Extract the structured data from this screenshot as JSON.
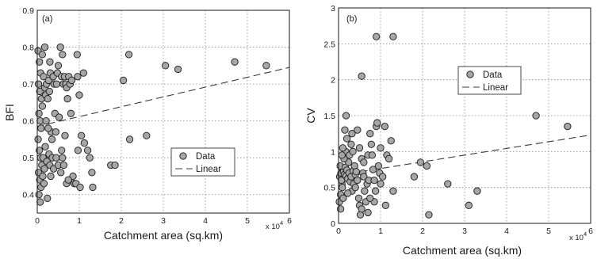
{
  "chart_data": [
    {
      "type": "scatter",
      "panel_label": "(a)",
      "xlabel": "Catchment area (sq.km)",
      "ylabel": "BFI",
      "x_multiplier_label": "x 10",
      "x_multiplier_exp": "4",
      "xlim": [
        0,
        6
      ],
      "ylim": [
        0.35,
        0.9
      ],
      "x_ticks": [
        "0",
        "1",
        "2",
        "3",
        "4",
        "5",
        "6"
      ],
      "y_ticks": [
        "0.4",
        "0.5",
        "0.6",
        "0.7",
        "0.8",
        "0.9"
      ],
      "grid": true,
      "legend_position": "center-right",
      "series": [
        {
          "name": "Data",
          "kind": "markers",
          "points": [
            [
              0.02,
              0.79
            ],
            [
              0.05,
              0.76
            ],
            [
              0.08,
              0.73
            ],
            [
              0.03,
              0.7
            ],
            [
              0.06,
              0.68
            ],
            [
              0.1,
              0.66
            ],
            [
              0.12,
              0.64
            ],
            [
              0.04,
              0.62
            ],
            [
              0.07,
              0.6
            ],
            [
              0.09,
              0.58
            ],
            [
              0.02,
              0.55
            ],
            [
              0.05,
              0.52
            ],
            [
              0.08,
              0.5
            ],
            [
              0.11,
              0.48
            ],
            [
              0.03,
              0.46
            ],
            [
              0.06,
              0.44
            ],
            [
              0.09,
              0.42
            ],
            [
              0.04,
              0.4
            ],
            [
              0.07,
              0.38
            ],
            [
              0.13,
              0.45
            ],
            [
              0.15,
              0.72
            ],
            [
              0.18,
              0.69
            ],
            [
              0.2,
              0.67
            ],
            [
              0.22,
              0.7
            ],
            [
              0.25,
              0.66
            ],
            [
              0.14,
              0.5
            ],
            [
              0.17,
              0.47
            ],
            [
              0.19,
              0.53
            ],
            [
              0.23,
              0.49
            ],
            [
              0.16,
              0.43
            ],
            [
              0.27,
              0.71
            ],
            [
              0.29,
              0.68
            ],
            [
              0.31,
              0.73
            ],
            [
              0.33,
              0.57
            ],
            [
              0.35,
              0.55
            ],
            [
              0.28,
              0.51
            ],
            [
              0.3,
              0.48
            ],
            [
              0.32,
              0.45
            ],
            [
              0.21,
              0.6
            ],
            [
              0.26,
              0.58
            ],
            [
              0.12,
              0.78
            ],
            [
              0.18,
              0.8
            ],
            [
              0.3,
              0.76
            ],
            [
              0.38,
              0.72
            ],
            [
              0.4,
              0.7
            ],
            [
              0.42,
              0.62
            ],
            [
              0.44,
              0.57
            ],
            [
              0.36,
              0.5
            ],
            [
              0.39,
              0.47
            ],
            [
              0.24,
              0.39
            ],
            [
              0.46,
              0.7
            ],
            [
              0.48,
              0.73
            ],
            [
              0.5,
              0.75
            ],
            [
              0.52,
              0.61
            ],
            [
              0.55,
              0.8
            ],
            [
              0.58,
              0.72
            ],
            [
              0.62,
              0.7
            ],
            [
              0.45,
              0.5
            ],
            [
              0.5,
              0.48
            ],
            [
              0.56,
              0.46
            ],
            [
              0.6,
              0.78
            ],
            [
              0.65,
              0.72
            ],
            [
              0.68,
              0.7
            ],
            [
              0.7,
              0.69
            ],
            [
              0.72,
              0.66
            ],
            [
              0.6,
              0.5
            ],
            [
              0.63,
              0.48
            ],
            [
              0.66,
              0.56
            ],
            [
              0.7,
              0.43
            ],
            [
              0.58,
              0.52
            ],
            [
              0.75,
              0.72
            ],
            [
              0.78,
              0.7
            ],
            [
              0.82,
              0.71
            ],
            [
              0.85,
              0.45
            ],
            [
              0.88,
              0.43
            ],
            [
              0.92,
              0.43
            ],
            [
              0.95,
              0.78
            ],
            [
              0.96,
              0.72
            ],
            [
              1.0,
              0.67
            ],
            [
              1.05,
              0.56
            ],
            [
              0.97,
              0.52
            ],
            [
              1.02,
              0.42
            ],
            [
              1.1,
              0.73
            ],
            [
              1.12,
              0.54
            ],
            [
              1.2,
              0.52
            ],
            [
              1.25,
              0.5
            ],
            [
              1.3,
              0.46
            ],
            [
              1.32,
              0.42
            ],
            [
              0.8,
              0.62
            ],
            [
              0.74,
              0.44
            ],
            [
              1.75,
              0.48
            ],
            [
              1.85,
              0.48
            ],
            [
              2.05,
              0.71
            ],
            [
              2.18,
              0.78
            ],
            [
              2.2,
              0.55
            ],
            [
              2.6,
              0.56
            ],
            [
              3.05,
              0.75
            ],
            [
              3.35,
              0.74
            ],
            [
              4.7,
              0.76
            ],
            [
              5.45,
              0.75
            ]
          ]
        },
        {
          "name": "Linear",
          "kind": "line",
          "points": [
            [
              0,
              0.585
            ],
            [
              6,
              0.745
            ]
          ]
        }
      ]
    },
    {
      "type": "scatter",
      "panel_label": "(b)",
      "xlabel": "Catchment area (sq.km)",
      "ylabel": "CV",
      "x_multiplier_label": "x 10",
      "x_multiplier_exp": "4",
      "xlim": [
        0,
        6
      ],
      "ylim": [
        0,
        3
      ],
      "x_ticks": [
        "0",
        "1",
        "2",
        "3",
        "4",
        "5",
        "6"
      ],
      "y_ticks": [
        "0",
        "0.5",
        "1",
        "1.5",
        "2",
        "2.5",
        "3"
      ],
      "grid": true,
      "legend_position": "upper-center",
      "series": [
        {
          "name": "Data",
          "kind": "markers",
          "points": [
            [
              0.02,
              0.3
            ],
            [
              0.05,
              0.4
            ],
            [
              0.08,
              0.55
            ],
            [
              0.03,
              0.65
            ],
            [
              0.06,
              0.7
            ],
            [
              0.1,
              0.75
            ],
            [
              0.04,
              0.8
            ],
            [
              0.07,
              0.6
            ],
            [
              0.09,
              0.5
            ],
            [
              0.11,
              0.35
            ],
            [
              0.12,
              0.72
            ],
            [
              0.14,
              0.68
            ],
            [
              0.16,
              0.78
            ],
            [
              0.18,
              0.66
            ],
            [
              0.2,
              0.74
            ],
            [
              0.22,
              0.62
            ],
            [
              0.24,
              0.85
            ],
            [
              0.13,
              0.9
            ],
            [
              0.17,
              1.0
            ],
            [
              0.1,
              1.05
            ],
            [
              0.15,
              1.3
            ],
            [
              0.18,
              1.5
            ],
            [
              0.2,
              1.18
            ],
            [
              0.25,
              0.7
            ],
            [
              0.28,
              0.58
            ],
            [
              0.3,
              0.65
            ],
            [
              0.32,
              0.45
            ],
            [
              0.35,
              0.73
            ],
            [
              0.38,
              0.8
            ],
            [
              0.4,
              0.68
            ],
            [
              0.26,
              0.95
            ],
            [
              0.3,
              1.1
            ],
            [
              0.34,
              1.0
            ],
            [
              0.36,
              0.55
            ],
            [
              0.42,
              0.72
            ],
            [
              0.45,
              0.6
            ],
            [
              0.48,
              0.35
            ],
            [
              0.5,
              0.25
            ],
            [
              0.52,
              0.12
            ],
            [
              0.55,
              0.2
            ],
            [
              0.45,
              1.3
            ],
            [
              0.5,
              1.05
            ],
            [
              0.55,
              0.9
            ],
            [
              0.58,
              0.7
            ],
            [
              0.6,
              0.65
            ],
            [
              0.62,
              0.45
            ],
            [
              0.65,
              0.3
            ],
            [
              0.68,
              0.55
            ],
            [
              0.7,
              0.95
            ],
            [
              0.72,
              0.6
            ],
            [
              0.75,
              1.25
            ],
            [
              0.78,
              1.1
            ],
            [
              0.8,
              0.95
            ],
            [
              0.82,
              0.75
            ],
            [
              0.85,
              0.6
            ],
            [
              0.88,
              0.45
            ],
            [
              0.9,
              1.35
            ],
            [
              0.92,
              1.4
            ],
            [
              0.95,
              0.8
            ],
            [
              0.98,
              0.7
            ],
            [
              1.0,
              1.05
            ],
            [
              1.05,
              0.65
            ],
            [
              1.1,
              1.35
            ],
            [
              1.15,
              0.95
            ],
            [
              1.2,
              0.9
            ],
            [
              1.25,
              1.15
            ],
            [
              1.3,
              0.45
            ],
            [
              1.0,
              0.55
            ],
            [
              0.85,
              0.3
            ],
            [
              0.05,
              0.2
            ],
            [
              0.55,
              2.05
            ],
            [
              0.9,
              2.6
            ],
            [
              1.3,
              2.6
            ],
            [
              1.8,
              0.65
            ],
            [
              1.95,
              0.85
            ],
            [
              2.1,
              0.8
            ],
            [
              2.15,
              0.12
            ],
            [
              2.6,
              0.55
            ],
            [
              3.1,
              0.25
            ],
            [
              3.3,
              0.45
            ],
            [
              4.7,
              1.5
            ],
            [
              5.45,
              1.35
            ],
            [
              0.4,
              0.5
            ],
            [
              0.6,
              0.85
            ],
            [
              0.75,
              0.35
            ],
            [
              1.12,
              0.25
            ],
            [
              0.22,
              0.42
            ],
            [
              0.08,
              0.95
            ],
            [
              0.32,
              1.25
            ],
            [
              0.7,
              0.15
            ]
          ]
        },
        {
          "name": "Linear",
          "kind": "line",
          "points": [
            [
              0,
              0.67
            ],
            [
              6,
              1.23
            ]
          ]
        }
      ]
    }
  ]
}
